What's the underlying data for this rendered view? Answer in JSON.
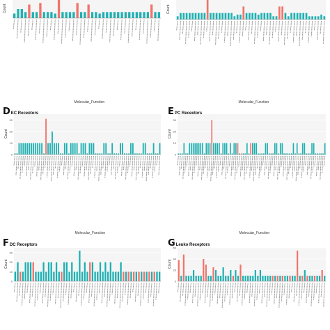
{
  "colors": {
    "teal": "#1fb0b2",
    "salmon": "#f0736a",
    "axis": "#888888",
    "grid": "#ececec",
    "label": "#555555"
  },
  "chart_data": [
    {
      "type": "bar",
      "panel_id": "A",
      "letter": "",
      "title": "",
      "xlabel": "Molecular_Function",
      "ylabel": "Count",
      "ylim": [
        0,
        12
      ],
      "values": [
        3,
        6,
        6,
        4,
        9,
        4,
        4,
        10,
        4,
        4,
        4,
        3,
        12,
        4,
        4,
        4,
        4,
        10,
        4,
        4,
        9,
        4,
        4,
        3,
        4,
        4,
        4,
        4,
        4,
        4,
        4,
        4,
        4,
        4,
        4,
        4,
        4,
        9,
        4,
        4
      ],
      "highlight": [
        4,
        7,
        12,
        17,
        20,
        37
      ]
    },
    {
      "type": "bar",
      "panel_id": "B",
      "letter": "",
      "title": "",
      "xlabel": "Molecular_Function",
      "ylabel": "Count",
      "ylim": [
        0,
        12
      ],
      "values": [
        2,
        4,
        4,
        4,
        4,
        4,
        4,
        4,
        4,
        4,
        12,
        4,
        4,
        4,
        4,
        4,
        4,
        4,
        4,
        2,
        3,
        3,
        8,
        4,
        4,
        4,
        4,
        3,
        4,
        4,
        4,
        4,
        2,
        2,
        8,
        8,
        4,
        2,
        4,
        4,
        4,
        4,
        4,
        4,
        2,
        2,
        2,
        2,
        3,
        2
      ],
      "highlight": [
        10,
        22,
        34,
        35
      ]
    },
    {
      "type": "bar",
      "panel_id": "D",
      "letter": "D",
      "title": "EC Receptors",
      "xlabel": "Molecular_Function",
      "ylabel": "Count",
      "ylim": [
        0,
        35
      ],
      "yticks": [
        0,
        10,
        20,
        30
      ],
      "values": [
        1,
        1,
        10,
        10,
        10,
        10,
        10,
        10,
        10,
        10,
        10,
        10,
        10,
        10,
        1,
        31,
        10,
        10,
        20,
        10,
        10,
        10,
        1,
        1,
        10,
        10,
        1,
        10,
        10,
        10,
        10,
        1,
        10,
        10,
        10,
        1,
        10,
        10,
        10,
        1,
        1,
        1,
        1,
        10,
        10,
        1,
        1,
        10,
        1,
        1,
        1,
        10,
        10,
        1,
        1,
        1,
        10,
        10,
        1,
        1,
        1,
        1,
        10,
        10,
        1,
        1,
        1,
        10,
        1,
        1,
        10
      ],
      "highlight": [
        15
      ]
    },
    {
      "type": "bar",
      "panel_id": "E",
      "letter": "E",
      "title": "PC Receptors",
      "xlabel": "Molecular_Function",
      "ylabel": "Count",
      "ylim": [
        0,
        35
      ],
      "yticks": [
        0,
        10,
        20,
        30
      ],
      "values": [
        1,
        1,
        1,
        10,
        1,
        1,
        10,
        10,
        10,
        10,
        10,
        10,
        10,
        10,
        1,
        10,
        10,
        10,
        30,
        10,
        10,
        10,
        10,
        1,
        10,
        10,
        10,
        1,
        10,
        1,
        10,
        10,
        10,
        1,
        1,
        1,
        1,
        10,
        1,
        10,
        10,
        10,
        10,
        1,
        1,
        1,
        1,
        10,
        10,
        1,
        1,
        1,
        10,
        10,
        1,
        10,
        10,
        1,
        1,
        1,
        1,
        1,
        10,
        1,
        10,
        1,
        1,
        10,
        10,
        1,
        1,
        1,
        10,
        10,
        1,
        1,
        1,
        1,
        1,
        10
      ],
      "highlight": [
        18,
        32,
        34,
        39
      ]
    },
    {
      "type": "bar",
      "panel_id": "F",
      "letter": "F",
      "title": "DC Receptors",
      "xlabel": "",
      "ylabel": "Count",
      "ylim": [
        0,
        35
      ],
      "yticks": [
        0,
        10,
        20,
        30
      ],
      "values": [
        10,
        20,
        10,
        10,
        20,
        20,
        20,
        20,
        10,
        10,
        10,
        20,
        10,
        20,
        20,
        10,
        20,
        10,
        10,
        20,
        20,
        10,
        20,
        10,
        10,
        32,
        10,
        20,
        10,
        20,
        20,
        10,
        10,
        20,
        10,
        20,
        10,
        20,
        10,
        10,
        10,
        20,
        10,
        10,
        10,
        10,
        10,
        10,
        10,
        10,
        10,
        10,
        10,
        10,
        10,
        10,
        10
      ],
      "highlight": [
        2,
        7,
        18,
        29,
        42,
        44,
        46,
        48,
        50,
        52,
        54
      ]
    },
    {
      "type": "bar",
      "panel_id": "G",
      "letter": "G",
      "title": "Leuko Receptors",
      "xlabel": "",
      "ylabel": "Count",
      "ylim": [
        0,
        60
      ],
      "yticks": [
        0,
        20,
        40,
        60
      ],
      "values": [
        38,
        10,
        48,
        10,
        10,
        10,
        20,
        10,
        10,
        10,
        40,
        30,
        10,
        10,
        25,
        20,
        10,
        10,
        25,
        10,
        10,
        20,
        10,
        20,
        10,
        30,
        10,
        10,
        10,
        10,
        10,
        20,
        10,
        20,
        10,
        10,
        10,
        10,
        10,
        10,
        10,
        10,
        10,
        10,
        10,
        10,
        10,
        10,
        55,
        10,
        10,
        20,
        10,
        10,
        10,
        10,
        10,
        10,
        20,
        10
      ],
      "highlight": [
        0,
        2,
        10,
        11,
        14,
        22,
        25,
        38,
        40,
        42,
        45,
        48,
        50,
        52,
        55,
        58
      ]
    }
  ]
}
